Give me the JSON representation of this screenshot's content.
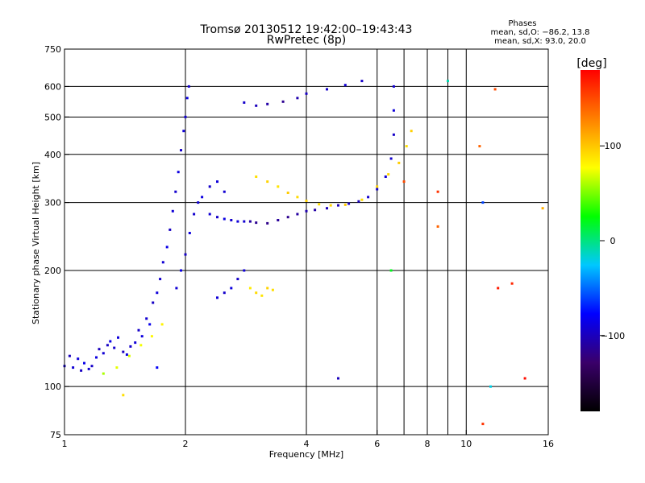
{
  "chart_data": {
    "type": "scatter",
    "title": "Tromsø 20130512 19:42:00–19:43:43",
    "subtitle": "RwPretec (8p)",
    "annotation": {
      "heading": "Phases",
      "line1": "mean, sd,O: −86.2, 13.8",
      "line2": "mean, sd,X:  93.0, 20.0"
    },
    "xlabel": "Frequency [MHz]",
    "ylabel": "Stationary phase Virtual Height [km]",
    "x_scale": "log",
    "y_scale": "log",
    "xlim": [
      1,
      16
    ],
    "ylim": [
      75,
      750
    ],
    "grid": true,
    "x_ticks": [
      {
        "value": 1,
        "label": "1"
      },
      {
        "value": 2,
        "label": "2"
      },
      {
        "value": 4,
        "label": "4"
      },
      {
        "value": 6,
        "label": "6"
      },
      {
        "value": 8,
        "label": "8"
      },
      {
        "value": 10,
        "label": "10"
      },
      {
        "value": 16,
        "label": "16"
      }
    ],
    "x_gridlines": [
      2,
      4,
      6,
      7,
      8,
      9,
      10
    ],
    "y_ticks": [
      {
        "value": 75,
        "label": "75"
      },
      {
        "value": 100,
        "label": "100"
      },
      {
        "value": 200,
        "label": "200"
      },
      {
        "value": 300,
        "label": "300"
      },
      {
        "value": 400,
        "label": "400"
      },
      {
        "value": 500,
        "label": "500"
      },
      {
        "value": 600,
        "label": "600"
      },
      {
        "value": 750,
        "label": "750"
      }
    ],
    "y_gridlines": [
      100,
      200,
      300,
      400,
      500,
      600
    ],
    "colorbar": {
      "label": "[deg]",
      "range": [
        -180,
        180
      ],
      "ticks": [
        {
          "value": 100,
          "label": "100"
        },
        {
          "value": 0,
          "label": "0"
        },
        {
          "value": -100,
          "label": "−100"
        }
      ],
      "stops": [
        "#000000",
        "#3a006a",
        "#0000ff",
        "#00c8ff",
        "#00ff00",
        "#ffff00",
        "#ff8000",
        "#ff0000"
      ]
    },
    "series": [
      {
        "values": [
          {
            "f": 1.0,
            "h": 113,
            "p": -95
          },
          {
            "f": 1.03,
            "h": 120,
            "p": -100
          },
          {
            "f": 1.05,
            "h": 112,
            "p": -92
          },
          {
            "f": 1.08,
            "h": 118,
            "p": -90
          },
          {
            "f": 1.1,
            "h": 110,
            "p": -98
          },
          {
            "f": 1.12,
            "h": 115,
            "p": -85
          },
          {
            "f": 1.15,
            "h": 111,
            "p": -93
          },
          {
            "f": 1.17,
            "h": 113,
            "p": -96
          },
          {
            "f": 1.2,
            "h": 119,
            "p": -88
          },
          {
            "f": 1.22,
            "h": 125,
            "p": -100
          },
          {
            "f": 1.25,
            "h": 122,
            "p": -92
          },
          {
            "f": 1.28,
            "h": 128,
            "p": -97
          },
          {
            "f": 1.3,
            "h": 131,
            "p": -86
          },
          {
            "f": 1.33,
            "h": 126,
            "p": -94
          },
          {
            "f": 1.36,
            "h": 134,
            "p": -90
          },
          {
            "f": 1.4,
            "h": 123,
            "p": -99
          },
          {
            "f": 1.43,
            "h": 121,
            "p": -87
          },
          {
            "f": 1.46,
            "h": 127,
            "p": -95
          },
          {
            "f": 1.5,
            "h": 130,
            "p": -91
          },
          {
            "f": 1.53,
            "h": 140,
            "p": -96
          },
          {
            "f": 1.56,
            "h": 135,
            "p": -88
          },
          {
            "f": 1.6,
            "h": 150,
            "p": -93
          },
          {
            "f": 1.63,
            "h": 145,
            "p": -84
          },
          {
            "f": 1.66,
            "h": 165,
            "p": -97
          },
          {
            "f": 1.7,
            "h": 175,
            "p": -90
          },
          {
            "f": 1.73,
            "h": 190,
            "p": -95
          },
          {
            "f": 1.76,
            "h": 210,
            "p": -92
          },
          {
            "f": 1.8,
            "h": 230,
            "p": -86
          },
          {
            "f": 1.83,
            "h": 255,
            "p": -98
          },
          {
            "f": 1.86,
            "h": 285,
            "p": -91
          },
          {
            "f": 1.89,
            "h": 320,
            "p": -94
          },
          {
            "f": 1.92,
            "h": 360,
            "p": -88
          },
          {
            "f": 1.95,
            "h": 410,
            "p": -96
          },
          {
            "f": 1.98,
            "h": 460,
            "p": -90
          },
          {
            "f": 2.0,
            "h": 500,
            "p": -93
          },
          {
            "f": 2.02,
            "h": 560,
            "p": -87
          },
          {
            "f": 2.04,
            "h": 600,
            "p": -95
          },
          {
            "f": 1.9,
            "h": 180,
            "p": -92
          },
          {
            "f": 1.95,
            "h": 200,
            "p": -86
          },
          {
            "f": 2.0,
            "h": 220,
            "p": -97
          },
          {
            "f": 2.05,
            "h": 250,
            "p": -89
          },
          {
            "f": 2.1,
            "h": 280,
            "p": -94
          },
          {
            "f": 2.15,
            "h": 300,
            "p": -91
          },
          {
            "f": 2.2,
            "h": 310,
            "p": -88
          },
          {
            "f": 2.3,
            "h": 330,
            "p": -95
          },
          {
            "f": 2.4,
            "h": 340,
            "p": -90
          },
          {
            "f": 2.5,
            "h": 320,
            "p": -93
          },
          {
            "f": 2.3,
            "h": 280,
            "p": -92
          },
          {
            "f": 2.4,
            "h": 275,
            "p": -96
          },
          {
            "f": 2.5,
            "h": 272,
            "p": -87
          },
          {
            "f": 2.6,
            "h": 270,
            "p": -94
          },
          {
            "f": 2.7,
            "h": 268,
            "p": -90
          },
          {
            "f": 2.8,
            "h": 268,
            "p": -93
          },
          {
            "f": 2.4,
            "h": 170,
            "p": -91
          },
          {
            "f": 2.5,
            "h": 175,
            "p": -95
          },
          {
            "f": 2.6,
            "h": 180,
            "p": -88
          },
          {
            "f": 2.7,
            "h": 190,
            "p": -96
          },
          {
            "f": 2.8,
            "h": 200,
            "p": -90
          },
          {
            "f": 2.9,
            "h": 268,
            "p": -110
          },
          {
            "f": 3.0,
            "h": 266,
            "p": -115
          },
          {
            "f": 3.2,
            "h": 265,
            "p": -118
          },
          {
            "f": 3.4,
            "h": 270,
            "p": -112
          },
          {
            "f": 3.6,
            "h": 275,
            "p": -116
          },
          {
            "f": 3.8,
            "h": 280,
            "p": -110
          },
          {
            "f": 4.0,
            "h": 285,
            "p": -105
          },
          {
            "f": 4.2,
            "h": 287,
            "p": -108
          },
          {
            "f": 4.5,
            "h": 290,
            "p": -100
          },
          {
            "f": 4.8,
            "h": 295,
            "p": -102
          },
          {
            "f": 5.1,
            "h": 298,
            "p": -98
          },
          {
            "f": 5.4,
            "h": 302,
            "p": -100
          },
          {
            "f": 5.7,
            "h": 310,
            "p": -95
          },
          {
            "f": 6.0,
            "h": 325,
            "p": -97
          },
          {
            "f": 6.3,
            "h": 350,
            "p": -92
          },
          {
            "f": 6.5,
            "h": 390,
            "p": -94
          },
          {
            "f": 6.6,
            "h": 450,
            "p": -96
          },
          {
            "f": 6.6,
            "h": 520,
            "p": -90
          },
          {
            "f": 6.6,
            "h": 600,
            "p": -93
          },
          {
            "f": 2.8,
            "h": 545,
            "p": -95
          },
          {
            "f": 3.0,
            "h": 535,
            "p": -100
          },
          {
            "f": 3.2,
            "h": 540,
            "p": -108
          },
          {
            "f": 3.5,
            "h": 548,
            "p": -115
          },
          {
            "f": 3.8,
            "h": 560,
            "p": -105
          },
          {
            "f": 4.0,
            "h": 575,
            "p": -98
          },
          {
            "f": 4.5,
            "h": 590,
            "p": -95
          },
          {
            "f": 5.0,
            "h": 605,
            "p": -92
          },
          {
            "f": 5.5,
            "h": 620,
            "p": -96
          },
          {
            "f": 3.0,
            "h": 350,
            "p": 90
          },
          {
            "f": 3.2,
            "h": 340,
            "p": 95
          },
          {
            "f": 3.4,
            "h": 330,
            "p": 88
          },
          {
            "f": 3.6,
            "h": 318,
            "p": 98
          },
          {
            "f": 3.8,
            "h": 310,
            "p": 92
          },
          {
            "f": 4.0,
            "h": 303,
            "p": 96
          },
          {
            "f": 4.3,
            "h": 297,
            "p": 90
          },
          {
            "f": 4.6,
            "h": 295,
            "p": 94
          },
          {
            "f": 5.0,
            "h": 296,
            "p": 99
          },
          {
            "f": 5.5,
            "h": 305,
            "p": 91
          },
          {
            "f": 6.0,
            "h": 330,
            "p": 95
          },
          {
            "f": 6.4,
            "h": 355,
            "p": 93
          },
          {
            "f": 6.8,
            "h": 380,
            "p": 97
          },
          {
            "f": 7.1,
            "h": 420,
            "p": 90
          },
          {
            "f": 7.3,
            "h": 460,
            "p": 96
          },
          {
            "f": 2.9,
            "h": 180,
            "p": 85
          },
          {
            "f": 3.0,
            "h": 175,
            "p": 92
          },
          {
            "f": 3.1,
            "h": 172,
            "p": 88
          },
          {
            "f": 3.2,
            "h": 180,
            "p": 95
          },
          {
            "f": 3.3,
            "h": 178,
            "p": 90
          },
          {
            "f": 1.45,
            "h": 120,
            "p": 70
          },
          {
            "f": 1.55,
            "h": 128,
            "p": 75
          },
          {
            "f": 1.65,
            "h": 135,
            "p": 80
          },
          {
            "f": 1.75,
            "h": 145,
            "p": 82
          },
          {
            "f": 1.25,
            "h": 108,
            "p": 60
          },
          {
            "f": 1.35,
            "h": 112,
            "p": 72
          },
          {
            "f": 4.8,
            "h": 105,
            "p": -100
          },
          {
            "f": 6.5,
            "h": 200,
            "p": 20
          },
          {
            "f": 7.0,
            "h": 340,
            "p": 150
          },
          {
            "f": 8.5,
            "h": 320,
            "p": 160
          },
          {
            "f": 8.5,
            "h": 260,
            "p": 140
          },
          {
            "f": 9.0,
            "h": 620,
            "p": -10
          },
          {
            "f": 11.0,
            "h": 300,
            "p": -60
          },
          {
            "f": 11.5,
            "h": 100,
            "p": -20
          },
          {
            "f": 12.0,
            "h": 180,
            "p": 170
          },
          {
            "f": 13.0,
            "h": 185,
            "p": 165
          },
          {
            "f": 14.0,
            "h": 105,
            "p": 175
          },
          {
            "f": 15.5,
            "h": 290,
            "p": 110
          },
          {
            "f": 11.0,
            "h": 80,
            "p": 160
          },
          {
            "f": 10.8,
            "h": 420,
            "p": 140
          },
          {
            "f": 11.8,
            "h": 590,
            "p": 150
          },
          {
            "f": 1.4,
            "h": 95,
            "p": 90
          },
          {
            "f": 1.7,
            "h": 112,
            "p": -80
          }
        ]
      }
    ]
  }
}
